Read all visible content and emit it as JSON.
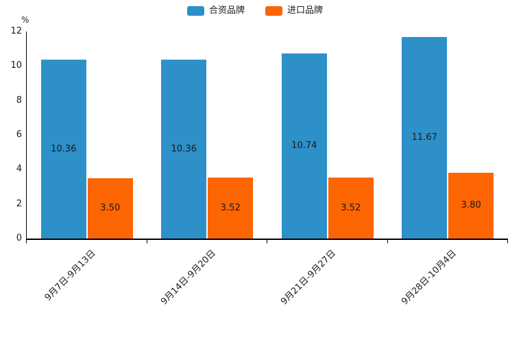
{
  "chart_data": {
    "type": "bar",
    "title": "",
    "categories": [
      "9月7日-9月13日",
      "9月14日-9月20日",
      "9月21日-9月27日",
      "9月28日-10月4日"
    ],
    "series": [
      {
        "name": "合资品牌",
        "color": "#2E90C8",
        "values": [
          10.36,
          10.36,
          10.74,
          11.67
        ]
      },
      {
        "name": "进口品牌",
        "color": "#FC6502",
        "values": [
          3.5,
          3.52,
          3.52,
          3.8
        ]
      }
    ],
    "value_labels": [
      [
        "10.36",
        "10.36",
        "10.74",
        "11.67"
      ],
      [
        "3.50",
        "3.52",
        "3.52",
        "3.80"
      ]
    ],
    "ylabel": "%",
    "ylim": [
      0,
      12
    ],
    "yticks": [
      0,
      2,
      4,
      6,
      8,
      10,
      12
    ],
    "grid": false,
    "legend_position": "top"
  }
}
